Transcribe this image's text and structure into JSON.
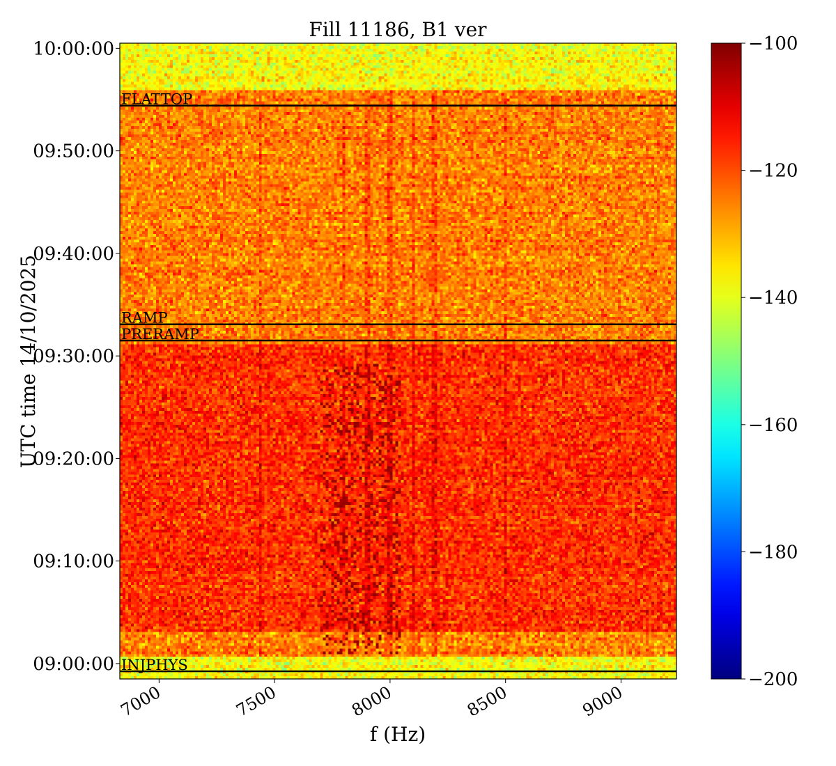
{
  "chart_data": {
    "type": "heatmap",
    "title": "Fill 11186, B1 ver",
    "xlabel": "f (Hz)",
    "ylabel": "UTC time 14/10/2025",
    "xlim": [
      6830,
      9240
    ],
    "ylim": [
      -90,
      3630
    ],
    "x_ticks": [
      7000,
      7500,
      8000,
      8500,
      9000
    ],
    "x_tick_labels": [
      "7000",
      "7500",
      "8000",
      "8500",
      "9000"
    ],
    "y_ticks": [
      0,
      600,
      1200,
      1800,
      2400,
      3000,
      3600
    ],
    "y_tick_labels": [
      "09:00:00",
      "09:10:00",
      "09:20:00",
      "09:30:00",
      "09:40:00",
      "09:50:00",
      "10:00:00"
    ],
    "y_tick_unit": "seconds after 09:00:00",
    "colorbar": {
      "vmin": -200,
      "vmax": -100,
      "colormap": "jet",
      "ticks": [
        -100,
        -120,
        -140,
        -160,
        -180,
        -200
      ],
      "tick_labels": [
        "−100",
        "−120",
        "−140",
        "−160",
        "−180",
        "−200"
      ]
    },
    "events": [
      {
        "label": "INJPHYS",
        "time_s": -45
      },
      {
        "label": "PRERAMP",
        "time_s": 1890
      },
      {
        "label": "RAMP",
        "time_s": 1985
      },
      {
        "label": "FLATTOP",
        "time_s": 3265
      }
    ],
    "regions": [
      {
        "t_start": -90,
        "t_end": 45,
        "level_db": -138
      },
      {
        "t_start": 45,
        "t_end": 190,
        "level_db": -125
      },
      {
        "t_start": 190,
        "t_end": 1870,
        "level_db": -117
      },
      {
        "t_start": 1870,
        "t_end": 3350,
        "level_db": -125
      },
      {
        "t_start": 3350,
        "t_end": 3630,
        "level_db": -138
      }
    ],
    "spectral_lines_hz": [
      7440,
      7800,
      7900,
      8000,
      8100,
      8190,
      8500
    ],
    "wandering_feature": {
      "t_start": 50,
      "t_end": 1760,
      "f_min_hz": 7700,
      "f_max_hz": 8050,
      "level_db": -105
    },
    "grid": false
  }
}
